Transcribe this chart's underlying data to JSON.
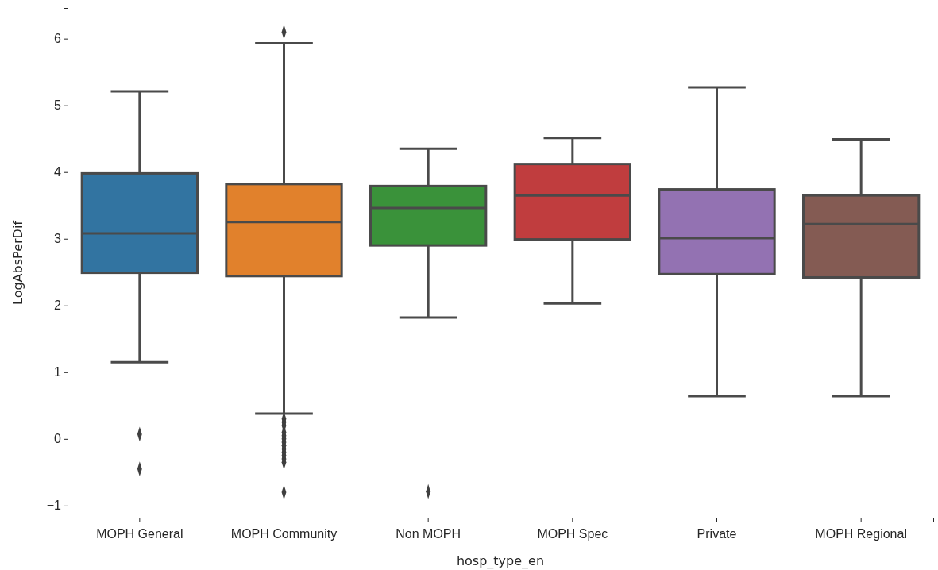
{
  "chart_data": {
    "type": "box",
    "xlabel": "hosp_type_en",
    "ylabel": "LogAbsPerDif",
    "categories": [
      "MOPH General",
      "MOPH Community",
      "Non MOPH",
      "MOPH Spec",
      "Private",
      "MOPH Regional"
    ],
    "colors": [
      "#3274a1",
      "#e1812c",
      "#3a923a",
      "#c03d3e",
      "#9372b2",
      "#845b53"
    ],
    "boxes": [
      {
        "low": 1.15,
        "q1": 2.49,
        "median": 3.08,
        "q3": 3.98,
        "high": 5.21,
        "outliers": [
          0.07,
          -0.45
        ]
      },
      {
        "low": 0.38,
        "q1": 2.44,
        "median": 3.25,
        "q3": 3.82,
        "high": 5.93,
        "outliers": [
          6.1,
          0.3,
          0.25,
          0.2,
          0.1,
          0.05,
          0,
          -0.05,
          -0.1,
          -0.15,
          -0.2,
          -0.25,
          -0.3,
          -0.35,
          -0.8
        ]
      },
      {
        "low": 1.82,
        "q1": 2.9,
        "median": 3.46,
        "q3": 3.79,
        "high": 4.35,
        "outliers": [
          -0.79
        ]
      },
      {
        "low": 2.03,
        "q1": 2.99,
        "median": 3.65,
        "q3": 4.12,
        "high": 4.51
      },
      {
        "low": 0.64,
        "q1": 2.47,
        "median": 3.01,
        "q3": 3.74,
        "high": 5.27
      },
      {
        "low": 0.64,
        "q1": 2.42,
        "median": 3.22,
        "q3": 3.65,
        "high": 4.49
      }
    ],
    "ylim": [
      -1.18,
      6.46
    ],
    "yticks": [
      {
        "value": -1,
        "label": "−1"
      },
      0,
      1,
      2,
      3,
      4,
      5,
      6
    ],
    "marker": "diamond",
    "grid": false,
    "legend": false
  }
}
